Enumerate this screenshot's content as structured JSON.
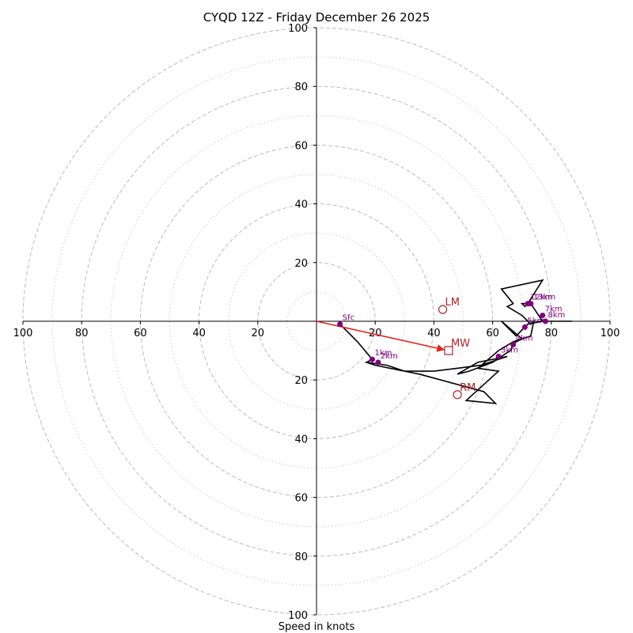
{
  "chart_data": {
    "type": "hodograph",
    "title": "CYQD 12Z - Friday December 26 2025",
    "xlabel": "Speed in knots",
    "axis_range": [
      -100,
      100
    ],
    "ring_major": [
      20,
      40,
      60,
      80,
      100
    ],
    "ring_minor": [
      10,
      30,
      50,
      70,
      90
    ],
    "tick_labels": {
      "x_left": [
        "100",
        "80",
        "60",
        "40",
        "20"
      ],
      "x_right": [
        "20",
        "40",
        "60",
        "80",
        "100"
      ],
      "y_up": [
        "20",
        "40",
        "60",
        "80",
        "100"
      ],
      "y_down": [
        "20",
        "40",
        "60",
        "80",
        "100"
      ]
    },
    "tick_values": {
      "x_left": [
        -100,
        -80,
        -60,
        -40,
        -20
      ],
      "x_right": [
        20,
        40,
        60,
        80,
        100
      ],
      "y_up": [
        20,
        40,
        60,
        80,
        100
      ],
      "y_down": [
        -20,
        -40,
        -60,
        -80,
        -100
      ]
    },
    "wind_profile_uv": [
      [
        8,
        -1
      ],
      [
        14,
        -7
      ],
      [
        19,
        -13
      ],
      [
        17,
        -14
      ],
      [
        24,
        -15
      ],
      [
        27,
        -16
      ],
      [
        30,
        -17
      ],
      [
        40,
        -17
      ],
      [
        48,
        -16
      ],
      [
        56,
        -15
      ],
      [
        65,
        -12
      ],
      [
        55,
        -14
      ],
      [
        48,
        -18
      ],
      [
        52,
        -17
      ],
      [
        60,
        -14
      ],
      [
        66,
        -10
      ],
      [
        67,
        -8
      ],
      [
        68,
        -7
      ],
      [
        70,
        -6
      ],
      [
        63,
        0
      ],
      [
        65,
        -2
      ],
      [
        68,
        -5
      ],
      [
        70,
        -3
      ],
      [
        72,
        -1
      ],
      [
        77,
        0
      ],
      [
        79,
        0
      ],
      [
        87,
        0
      ],
      [
        77,
        0
      ],
      [
        75,
        3
      ],
      [
        73,
        6
      ],
      [
        70,
        6
      ],
      [
        71,
        5
      ],
      [
        72,
        6
      ],
      [
        77,
        14
      ],
      [
        63,
        11
      ],
      [
        67,
        6
      ],
      [
        65,
        5
      ],
      [
        70,
        2
      ],
      [
        72,
        0
      ],
      [
        73,
        -1
      ],
      [
        74,
        0
      ],
      [
        73,
        -5
      ],
      [
        67,
        -7
      ],
      [
        62,
        -10
      ],
      [
        55,
        -16
      ],
      [
        62,
        -17
      ],
      [
        51,
        -27
      ],
      [
        61,
        -28
      ],
      [
        57,
        -24
      ],
      [
        35,
        -18
      ],
      [
        30,
        -17
      ],
      [
        20,
        -15
      ],
      [
        17,
        -14
      ]
    ],
    "height_markers": [
      {
        "label": "Sfc",
        "u": 8,
        "v": -1
      },
      {
        "label": "1km",
        "u": 19,
        "v": -13
      },
      {
        "label": "2km",
        "u": 21,
        "v": -14
      },
      {
        "label": "3km",
        "u": 62,
        "v": -12
      },
      {
        "label": "4km",
        "u": 67,
        "v": -8
      },
      {
        "label": "5km",
        "u": 71,
        "v": -2
      },
      {
        "label": "7km",
        "u": 77,
        "v": 2
      },
      {
        "label": "8km",
        "u": 78,
        "v": 0
      },
      {
        "label": "12km",
        "u": 72,
        "v": 6
      },
      {
        "label": "13km",
        "u": 73,
        "v": 6
      }
    ],
    "motion_vectors": [
      {
        "label": "LM",
        "u": 43,
        "v": 4
      },
      {
        "label": "MW",
        "u": 45,
        "v": -10
      },
      {
        "label": "RM",
        "u": 48,
        "v": -25
      }
    ],
    "colors": {
      "profile": "#000000",
      "markers": "#800080",
      "motion": "#b22222",
      "mean_wind_arrow": "#e8201a",
      "rings": "#bbbbbb"
    }
  }
}
